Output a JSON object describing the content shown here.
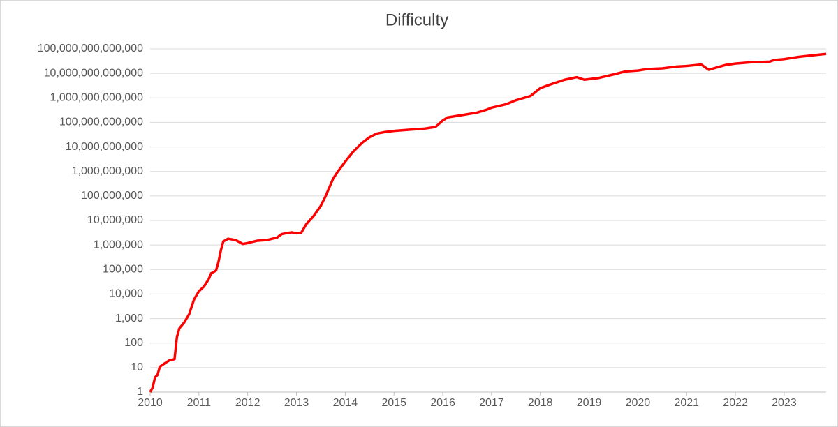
{
  "chart_data": {
    "type": "line",
    "title": "Difficulty",
    "log_y": true,
    "grid": true,
    "series": [
      {
        "name": "Difficulty",
        "color": "#ff0000",
        "x": [
          2010.0,
          2010.05,
          2010.1,
          2010.15,
          2010.2,
          2010.3,
          2010.4,
          2010.5,
          2010.55,
          2010.6,
          2010.7,
          2010.8,
          2010.9,
          2011.0,
          2011.1,
          2011.2,
          2011.25,
          2011.35,
          2011.4,
          2011.45,
          2011.5,
          2011.6,
          2011.75,
          2011.9,
          2012.0,
          2012.2,
          2012.4,
          2012.6,
          2012.7,
          2012.9,
          2013.0,
          2013.1,
          2013.2,
          2013.35,
          2013.5,
          2013.6,
          2013.75,
          2013.85,
          2014.0,
          2014.15,
          2014.35,
          2014.5,
          2014.65,
          2014.8,
          2015.0,
          2015.3,
          2015.6,
          2015.85,
          2016.0,
          2016.1,
          2016.4,
          2016.7,
          2016.9,
          2017.0,
          2017.3,
          2017.5,
          2017.8,
          2018.0,
          2018.2,
          2018.5,
          2018.75,
          2018.9,
          2019.2,
          2019.5,
          2019.75,
          2020.0,
          2020.2,
          2020.5,
          2020.8,
          2021.0,
          2021.3,
          2021.45,
          2021.6,
          2021.8,
          2022.0,
          2022.3,
          2022.7,
          2022.8,
          2023.0,
          2023.3,
          2023.6,
          2023.86
        ],
        "values": [
          1,
          1.5,
          4,
          5,
          11,
          15,
          20,
          22,
          180,
          400,
          700,
          1500,
          6000,
          13000,
          20000,
          40000,
          70000,
          90000,
          200000,
          600000,
          1400000,
          1800000,
          1600000,
          1100000,
          1200000,
          1500000,
          1600000,
          2000000,
          2800000,
          3300000,
          3000000,
          3200000,
          7000000,
          15000000,
          40000000,
          100000000,
          500000000,
          1000000000,
          2500000000,
          6000000000,
          15000000000,
          25000000000,
          35000000000,
          40000000000,
          45000000000,
          50000000000,
          55000000000,
          65000000000,
          120000000000,
          160000000000,
          200000000000,
          250000000000,
          330000000000,
          400000000000,
          550000000000,
          800000000000,
          1200000000000,
          2500000000000,
          3500000000000,
          5500000000000,
          7000000000000,
          5500000000000,
          6500000000000,
          9000000000000,
          12000000000000,
          13000000000000,
          15000000000000,
          16000000000000,
          19000000000000,
          20000000000000,
          23000000000000,
          14000000000000,
          17000000000000,
          22000000000000,
          25000000000000,
          28000000000000,
          30000000000000,
          35000000000000,
          38000000000000,
          47000000000000,
          55000000000000,
          62000000000000
        ]
      }
    ],
    "xlim": [
      2010,
      2023.86
    ],
    "xticks": [
      2010,
      2011,
      2012,
      2013,
      2014,
      2015,
      2016,
      2017,
      2018,
      2019,
      2020,
      2021,
      2022,
      2023
    ],
    "ylim": [
      1,
      100000000000000
    ],
    "yticks": [
      1,
      10,
      100,
      {
        "value": 1000,
        "label": "1,000"
      },
      {
        "value": 10000,
        "label": "10,000"
      },
      {
        "value": 100000,
        "label": "100,000"
      },
      {
        "value": 1000000,
        "label": "1,000,000"
      },
      {
        "value": 10000000,
        "label": "10,000,000"
      },
      {
        "value": 100000000,
        "label": "100,000,000"
      },
      {
        "value": 1000000000,
        "label": "1,000,000,000"
      },
      {
        "value": 10000000000,
        "label": "10,000,000,000"
      },
      {
        "value": 100000000000,
        "label": "100,000,000,000"
      },
      {
        "value": 1000000000000,
        "label": "1,000,000,000,000"
      },
      {
        "value": 10000000000000,
        "label": "10,000,000,000,000"
      },
      {
        "value": 100000000000000,
        "label": "100,000,000,000,000"
      }
    ]
  }
}
